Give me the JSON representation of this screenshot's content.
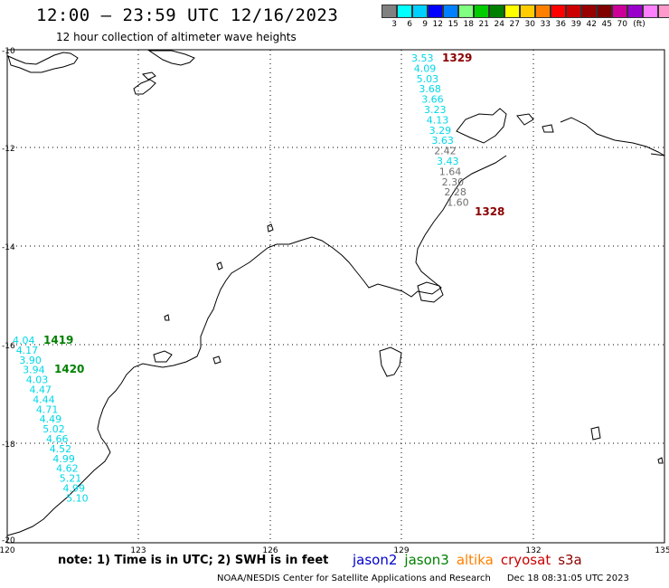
{
  "header": {
    "title": "12:00 – 23:59 UTC 12/16/2023",
    "subtitle": "12 hour collection of altimeter wave heights"
  },
  "legend": {
    "colors": [
      "#808080",
      "#00ffff",
      "#00d0ff",
      "#0000ff",
      "#0080ff",
      "#80ff80",
      "#00cc00",
      "#008000",
      "#ffff00",
      "#ffcc00",
      "#ff8000",
      "#ff0000",
      "#cc0000",
      "#990000",
      "#800000",
      "#cc0099",
      "#9900cc",
      "#ff80ff",
      "#ff99cc",
      "#000000"
    ],
    "labels": [
      "3",
      "6",
      "9",
      "12",
      "15",
      "18",
      "21",
      "24",
      "27",
      "30",
      "33",
      "36",
      "39",
      "42",
      "45",
      "70"
    ],
    "unit": "(ft)"
  },
  "axes": {
    "lat_labels": [
      "-10",
      "-12",
      "-14",
      "-16",
      "-18",
      "-20"
    ],
    "lon_labels": [
      "120",
      "123",
      "126",
      "129",
      "132",
      "135"
    ]
  },
  "tracks": [
    {
      "time": "1329",
      "time_color": "#8b0000",
      "readings": [
        {
          "v": "3.53",
          "c": "#00d8e8"
        },
        {
          "v": "4.09",
          "c": "#00d8e8"
        },
        {
          "v": "5.03",
          "c": "#00d8e8"
        },
        {
          "v": "3.68",
          "c": "#00d8e8"
        },
        {
          "v": "3.66",
          "c": "#00d8e8"
        },
        {
          "v": "3.23",
          "c": "#00d8e8"
        },
        {
          "v": "4.13",
          "c": "#00d8e8"
        },
        {
          "v": "3.29",
          "c": "#00d8e8"
        },
        {
          "v": "3.63",
          "c": "#00d8e8"
        },
        {
          "v": "2.42",
          "c": "#707070"
        },
        {
          "v": "3.43",
          "c": "#00d8e8"
        },
        {
          "v": "1.64",
          "c": "#707070"
        },
        {
          "v": "2.30",
          "c": "#707070"
        },
        {
          "v": "2.28",
          "c": "#707070"
        },
        {
          "v": "1.60",
          "c": "#707070"
        }
      ]
    },
    {
      "time": "1328",
      "time_color": "#8b0000",
      "readings": []
    },
    {
      "time": "1419",
      "time_color": "#008000",
      "readings": [
        {
          "v": "4.04",
          "c": "#00d8e8"
        },
        {
          "v": "4.17",
          "c": "#00d8e8"
        },
        {
          "v": "3.90",
          "c": "#00d8e8"
        },
        {
          "v": "3.94",
          "c": "#00d8e8"
        },
        {
          "v": "4.03",
          "c": "#00d8e8"
        },
        {
          "v": "4.47",
          "c": "#00d8e8"
        },
        {
          "v": "4.44",
          "c": "#00d8e8"
        },
        {
          "v": "4.71",
          "c": "#00d8e8"
        },
        {
          "v": "4.49",
          "c": "#00d8e8"
        },
        {
          "v": "5.02",
          "c": "#00d8e8"
        },
        {
          "v": "4.66",
          "c": "#00d8e8"
        },
        {
          "v": "4.52",
          "c": "#00d8e8"
        },
        {
          "v": "4.99",
          "c": "#00d8e8"
        },
        {
          "v": "4.62",
          "c": "#00d8e8"
        },
        {
          "v": "5.21",
          "c": "#00d8e8"
        },
        {
          "v": "4.99",
          "c": "#00d8e8"
        },
        {
          "v": "5.10",
          "c": "#00d8e8"
        }
      ]
    },
    {
      "time": "1420",
      "time_color": "#008000",
      "readings": []
    }
  ],
  "note": "note: 1) Time is in UTC; 2) SWH is in feet",
  "satellites": [
    {
      "name": "jason2",
      "color": "#0000cc"
    },
    {
      "name": "jason3",
      "color": "#008000"
    },
    {
      "name": "altika",
      "color": "#ff8000"
    },
    {
      "name": "cryosat",
      "color": "#cc0000"
    },
    {
      "name": "s3a",
      "color": "#8b0000"
    }
  ],
  "footer": {
    "credit": "NOAA/NESDIS Center for Satellite Applications and Research",
    "timestamp": "Dec 18 08:31:05 UTC 2023"
  }
}
